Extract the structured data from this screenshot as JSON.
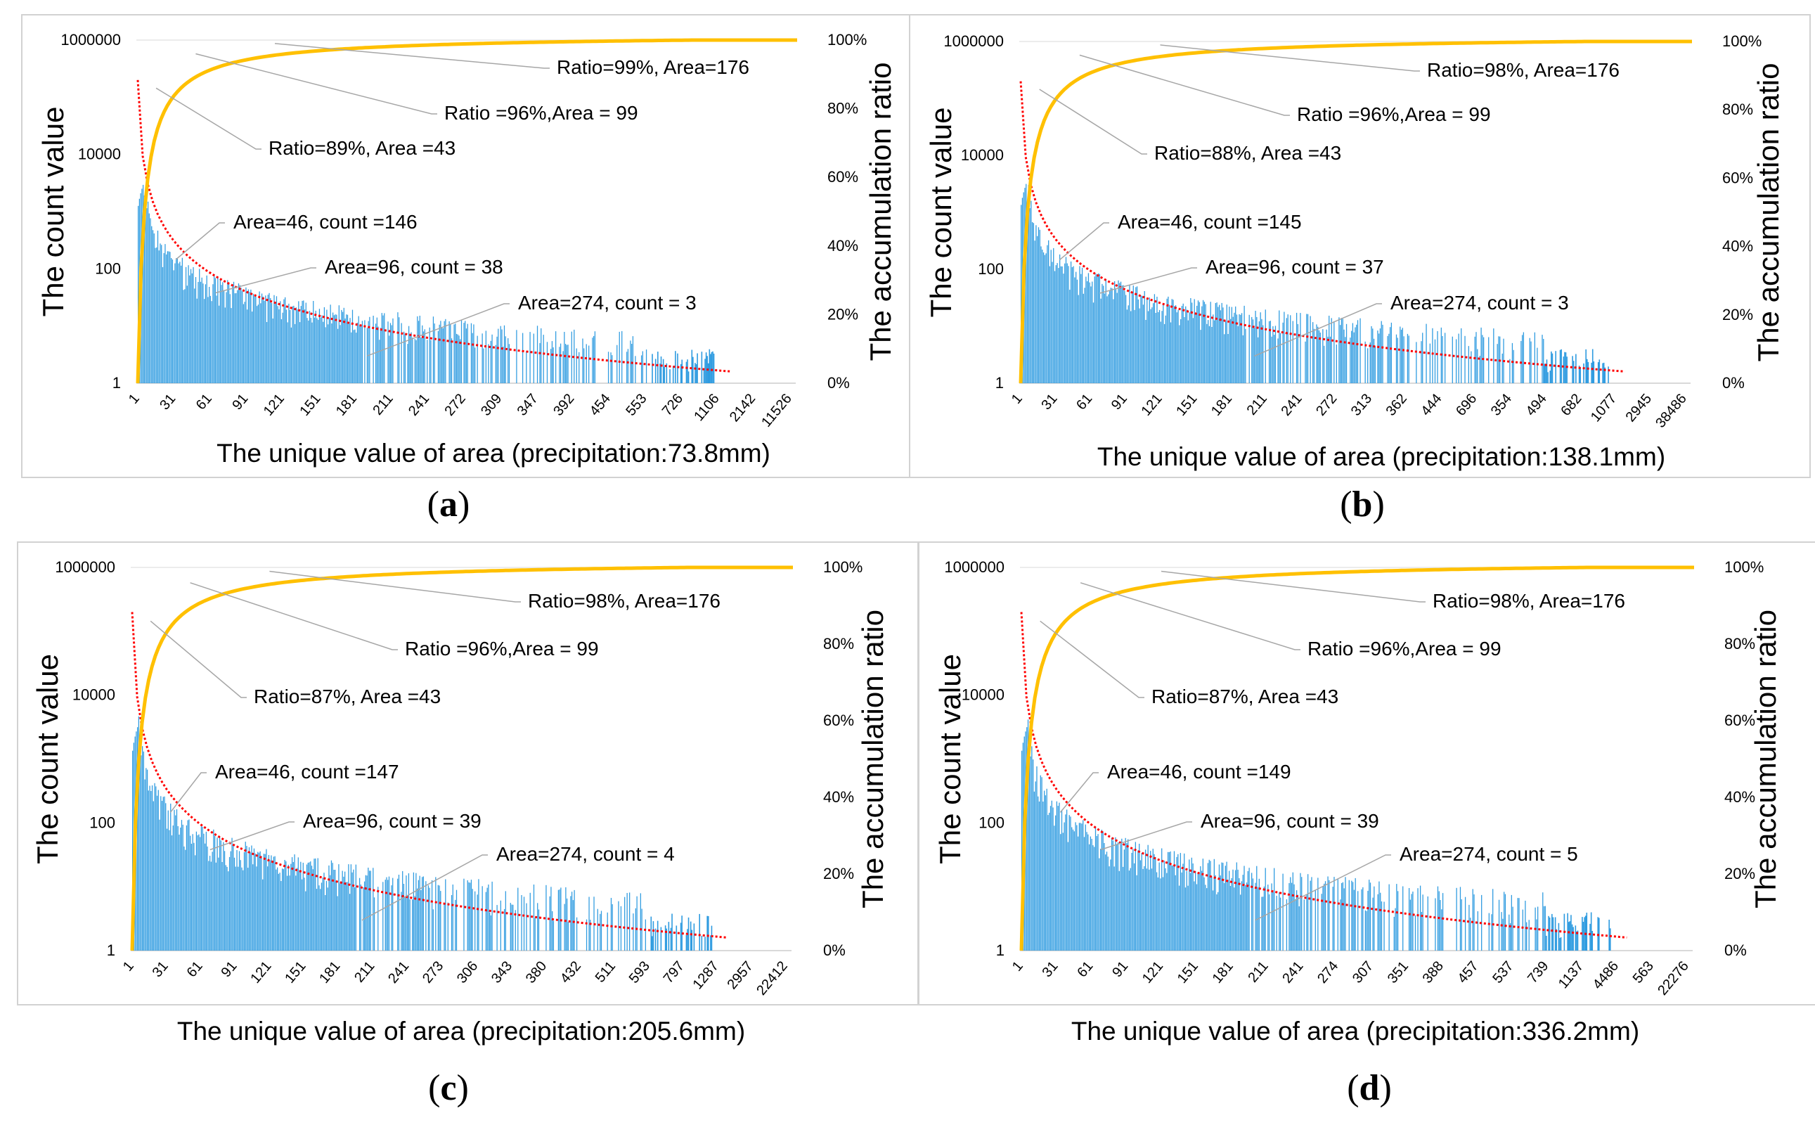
{
  "chart_data": [
    {
      "panel": "a",
      "type": "bar+line",
      "xlabel": "The unique value of area  (precipitation:73.8mm)",
      "ylabel_left": "The count value",
      "ylabel_right": "The accumulation ratio",
      "y_left_scale": "log",
      "y_left_ticks": [
        "1000000",
        "10000",
        "100",
        "1"
      ],
      "y_right_ticks": [
        "100%",
        "80%",
        "60%",
        "40%",
        "20%",
        "0%"
      ],
      "x_tick_labels": [
        "1",
        "31",
        "61",
        "91",
        "121",
        "151",
        "181",
        "211",
        "241",
        "272",
        "309",
        "347",
        "392",
        "454",
        "553",
        "726",
        "1106",
        "2142",
        "11526"
      ],
      "series": [
        {
          "name": "count",
          "kind": "bar",
          "color": "#2e9be0",
          "peak": 2800,
          "decay": 1.2
        },
        {
          "name": "accumulation ratio",
          "kind": "line",
          "color": "#ffc000"
        },
        {
          "name": "power-law fit",
          "kind": "dotted-line",
          "color": "#ff0000"
        }
      ],
      "annotations": [
        {
          "text": "Ratio=99%, Area=176"
        },
        {
          "text": "Ratio =96%,Area = 99"
        },
        {
          "text": "Ratio=89%, Area =43"
        },
        {
          "text": "Area=46, count =146"
        },
        {
          "text": "Area=96, count = 38"
        },
        {
          "text": "Area=274, count = 3"
        }
      ]
    },
    {
      "panel": "b",
      "type": "bar+line",
      "xlabel": "The unique value of area (precipitation:138.1mm)",
      "ylabel_left": "The count value",
      "ylabel_right": "The accumulation ratio",
      "y_left_scale": "log",
      "y_left_ticks": [
        "1000000",
        "10000",
        "100",
        "1"
      ],
      "y_right_ticks": [
        "100%",
        "80%",
        "60%",
        "40%",
        "20%",
        "0%"
      ],
      "x_tick_labels": [
        "1",
        "31",
        "61",
        "91",
        "121",
        "151",
        "181",
        "211",
        "241",
        "272",
        "313",
        "362",
        "444",
        "696",
        "354",
        "494",
        "682",
        "1077",
        "2945",
        "38486"
      ],
      "series": [
        {
          "name": "count",
          "kind": "bar",
          "color": "#2e9be0",
          "peak": 3000,
          "decay": 1.2
        },
        {
          "name": "accumulation ratio",
          "kind": "line",
          "color": "#ffc000"
        },
        {
          "name": "power-law fit",
          "kind": "dotted-line",
          "color": "#ff0000"
        }
      ],
      "annotations": [
        {
          "text": "Ratio=98%, Area=176"
        },
        {
          "text": "Ratio =96%,Area = 99"
        },
        {
          "text": "Ratio=88%, Area =43"
        },
        {
          "text": "Area=46, count =145"
        },
        {
          "text": "Area=96, count = 37"
        },
        {
          "text": "Area=274, count = 3"
        }
      ]
    },
    {
      "panel": "c",
      "type": "bar+line",
      "xlabel": "The unique value of area (precipitation:205.6mm)",
      "ylabel_left": "The count value",
      "ylabel_right": "The accumulation ratio",
      "y_left_scale": "log",
      "y_left_ticks": [
        "1000000",
        "10000",
        "100",
        "1"
      ],
      "y_right_ticks": [
        "100%",
        "80%",
        "60%",
        "40%",
        "20%",
        "0%"
      ],
      "x_tick_labels": [
        "1",
        "31",
        "61",
        "91",
        "121",
        "151",
        "181",
        "211",
        "241",
        "273",
        "306",
        "343",
        "380",
        "432",
        "511",
        "593",
        "797",
        "1287",
        "2957",
        "22412"
      ],
      "series": [
        {
          "name": "count",
          "kind": "bar",
          "color": "#2e9be0",
          "peak": 3000,
          "decay": 1.2
        },
        {
          "name": "accumulation ratio",
          "kind": "line",
          "color": "#ffc000"
        },
        {
          "name": "power-law fit",
          "kind": "dotted-line",
          "color": "#ff0000"
        }
      ],
      "annotations": [
        {
          "text": "Ratio=98%, Area=176"
        },
        {
          "text": "Ratio =96%,Area = 99"
        },
        {
          "text": "Ratio=87%, Area =43"
        },
        {
          "text": "Area=46, count =147"
        },
        {
          "text": "Area=96, count = 39"
        },
        {
          "text": "Area=274, count = 4"
        }
      ]
    },
    {
      "panel": "d",
      "type": "bar+line",
      "xlabel": "The unique value of area (precipitation:336.2mm)",
      "ylabel_left": "The count value",
      "ylabel_right": "The accumulation ratio",
      "y_left_scale": "log",
      "y_left_ticks": [
        "1000000",
        "10000",
        "100",
        "1"
      ],
      "y_right_ticks": [
        "100%",
        "80%",
        "60%",
        "40%",
        "20%",
        "0%"
      ],
      "x_tick_labels": [
        "1",
        "31",
        "61",
        "91",
        "121",
        "151",
        "181",
        "211",
        "241",
        "274",
        "307",
        "351",
        "388",
        "457",
        "537",
        "739",
        "1137",
        "4486",
        "563",
        "22276"
      ],
      "series": [
        {
          "name": "count",
          "kind": "bar",
          "color": "#2e9be0",
          "peak": 3000,
          "decay": 1.2
        },
        {
          "name": "accumulation ratio",
          "kind": "line",
          "color": "#ffc000"
        },
        {
          "name": "power-law fit",
          "kind": "dotted-line",
          "color": "#ff0000"
        }
      ],
      "annotations": [
        {
          "text": "Ratio=98%, Area=176"
        },
        {
          "text": "Ratio =96%,Area = 99"
        },
        {
          "text": "Ratio=87%, Area =43"
        },
        {
          "text": "Area=46, count =149"
        },
        {
          "text": "Area=96, count = 39"
        },
        {
          "text": "Area=274, count = 5"
        }
      ]
    }
  ],
  "panel_letters": [
    "a",
    "b",
    "c",
    "d"
  ]
}
